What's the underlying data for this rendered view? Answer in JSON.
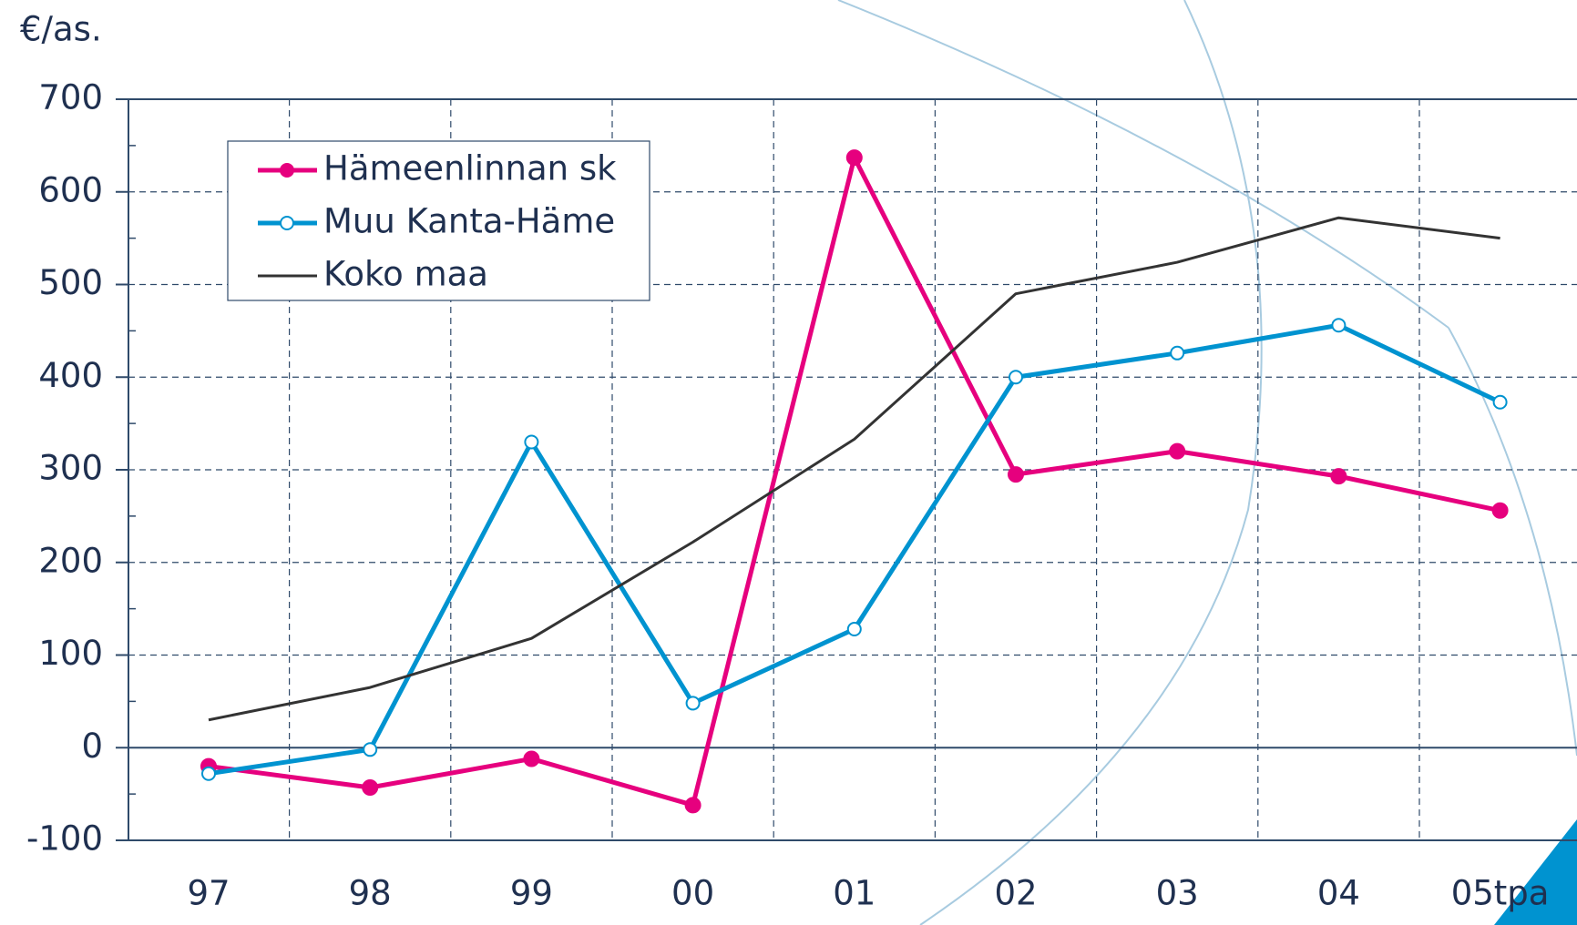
{
  "chart_data": {
    "type": "line",
    "ylabel": "€/as.",
    "categories": [
      "97",
      "98",
      "99",
      "00",
      "01",
      "02",
      "03",
      "04",
      "05tpa"
    ],
    "series": [
      {
        "name": "Hämeenlinnan sk",
        "color": "#e6007e",
        "marker": "filled",
        "values": [
          -20,
          -43,
          -12,
          -62,
          637,
          295,
          320,
          293,
          256
        ]
      },
      {
        "name": "Muu Kanta-Häme",
        "color": "#0093d0",
        "marker": "open",
        "values": [
          -28,
          -2,
          330,
          48,
          128,
          400,
          426,
          456,
          373
        ]
      },
      {
        "name": "Koko maa",
        "color": "#333333",
        "marker": "none",
        "values": [
          30,
          65,
          118,
          222,
          333,
          490,
          524,
          572,
          550
        ]
      }
    ],
    "ylim": [
      -100,
      700
    ],
    "yticks": [
      -100,
      0,
      100,
      200,
      300,
      400,
      500,
      600,
      700
    ],
    "grid": true
  }
}
